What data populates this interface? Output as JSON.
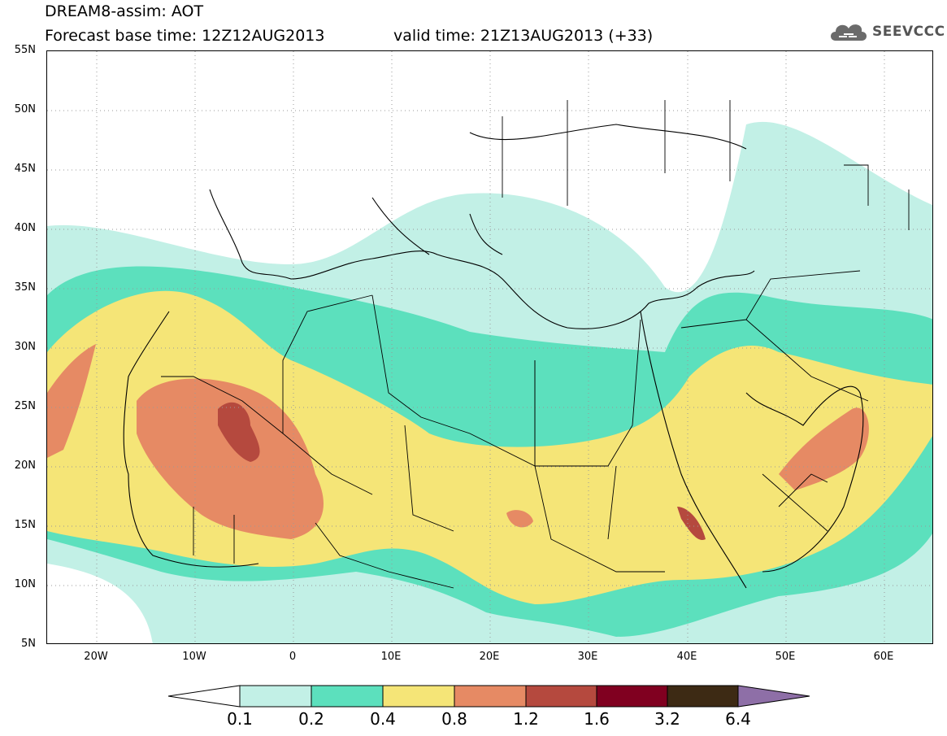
{
  "header": {
    "line1": "DREAM8-assim: AOT",
    "line2a": "Forecast base time: 12Z12AUG2013",
    "line2b": "valid time: 21Z13AUG2013 (+33)",
    "logo_text": "SEEVCCC"
  },
  "map": {
    "lon_range": [
      -25,
      65
    ],
    "lat_range": [
      5,
      55
    ],
    "lat_ticks": [
      "55N",
      "50N",
      "45N",
      "40N",
      "35N",
      "30N",
      "25N",
      "20N",
      "15N",
      "10N",
      "5N"
    ],
    "lon_ticks": [
      "20W",
      "10W",
      "0",
      "10E",
      "20E",
      "30E",
      "40E",
      "50E",
      "60E"
    ]
  },
  "colorbar": {
    "levels": [
      "0.1",
      "0.2",
      "0.4",
      "0.8",
      "1.2",
      "1.6",
      "3.2",
      "6.4"
    ],
    "colors": [
      "#c2f0e6",
      "#5ce0bd",
      "#f5e577",
      "#e68a64",
      "#b5493e",
      "#800020",
      "#3d2a14",
      "#8e6fa7"
    ]
  }
}
